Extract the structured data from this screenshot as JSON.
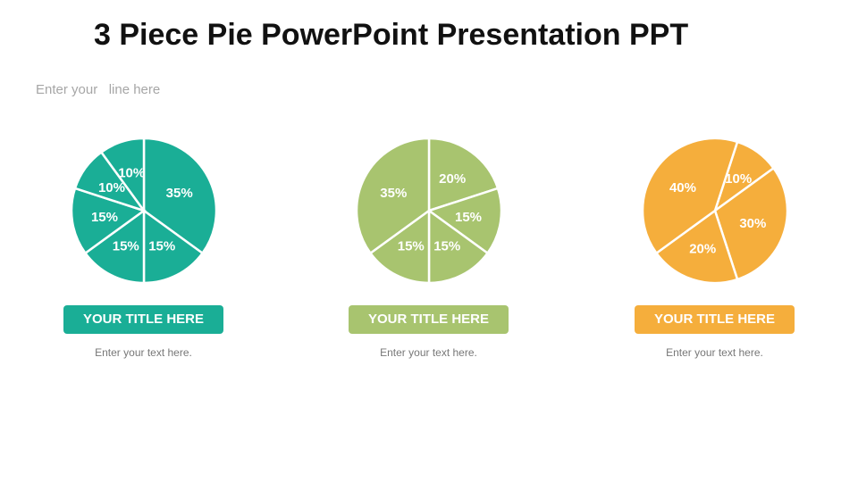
{
  "header": {
    "title": "3 Piece Pie PowerPoint Presentation PPT",
    "subtitle": "Enter your   line here"
  },
  "chart_data": [
    {
      "type": "pie",
      "color": "#1aae96",
      "start_angle_deg": 0,
      "values": [
        35,
        15,
        15,
        15,
        10,
        10
      ],
      "labels": [
        "35%",
        "15%",
        "15%",
        "15%",
        "10%",
        "10%"
      ],
      "card_title": "YOUR TITLE HERE",
      "card_text": "Enter your text here."
    },
    {
      "type": "pie",
      "color": "#a8c46f",
      "start_angle_deg": 0,
      "values": [
        20,
        15,
        15,
        15,
        35
      ],
      "labels": [
        "20%",
        "15%",
        "15%",
        "15%",
        "35%"
      ],
      "card_title": "YOUR TITLE HERE",
      "card_text": "Enter your text here."
    },
    {
      "type": "pie",
      "color": "#f5ae3c",
      "start_angle_deg": 18,
      "values": [
        10,
        30,
        20,
        40
      ],
      "labels": [
        "10%",
        "30%",
        "20%",
        "40%"
      ],
      "card_title": "YOUR TITLE HERE",
      "card_text": "Enter your text here."
    }
  ]
}
